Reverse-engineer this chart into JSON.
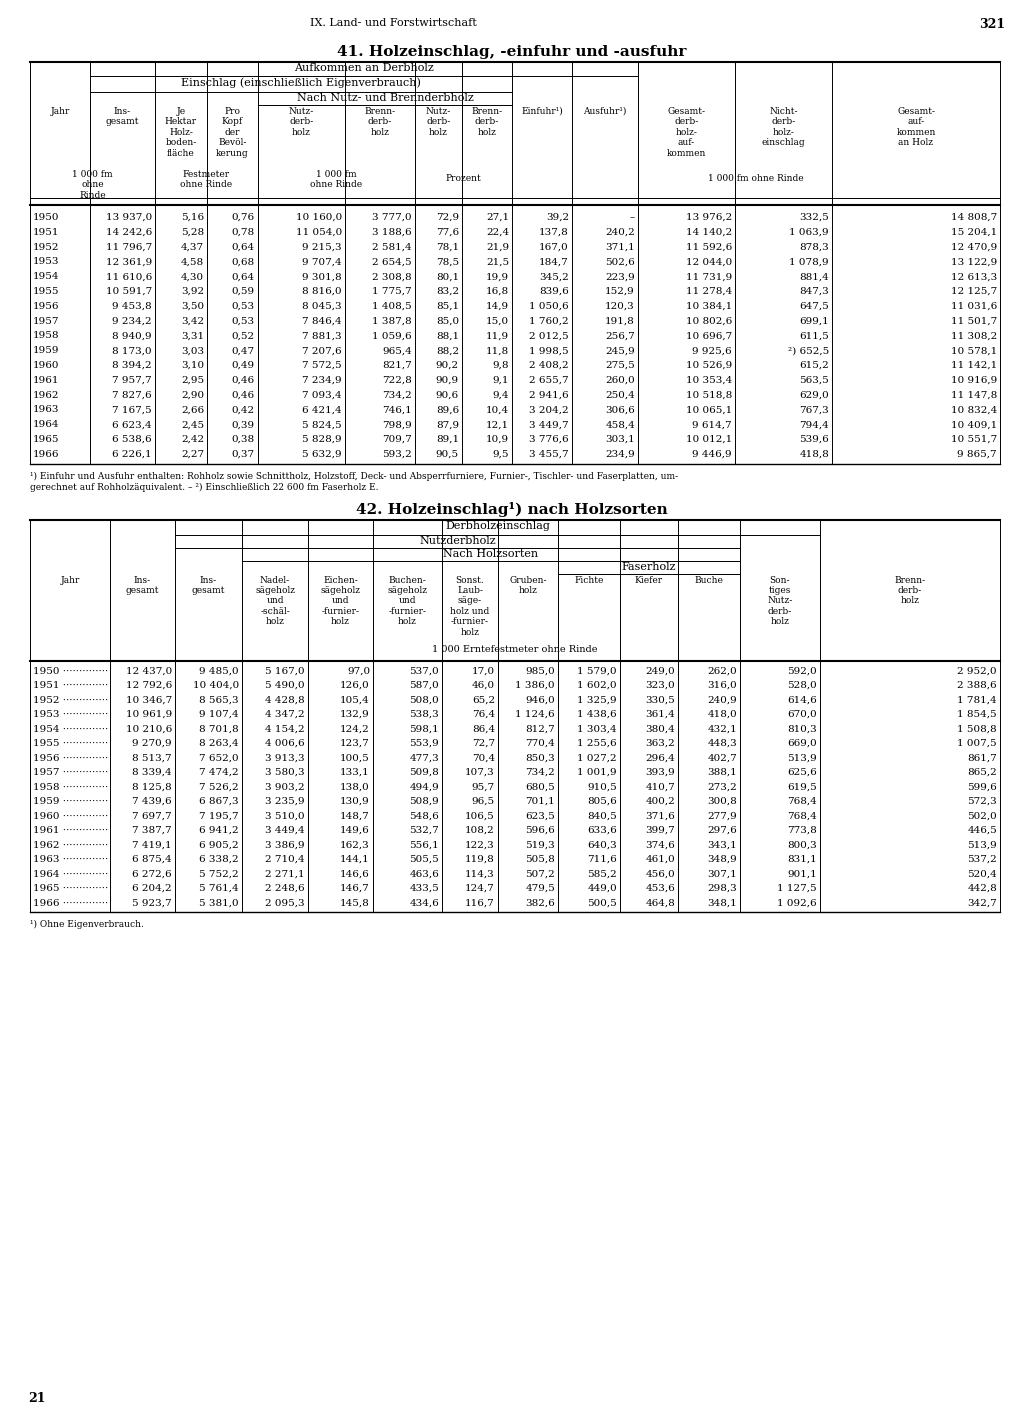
{
  "page_header": "IX. Land- und Forstwirtschaft",
  "page_number": "321",
  "table1_title": "41. Holzeinschlag, -einfuhr und -ausfuhr",
  "table2_title": "42. Holzeinschlag¹) nach Holzsorten",
  "footer_page": "21",
  "table1": {
    "data": [
      [
        "1950",
        "13 937,0",
        "5,16",
        "0,76",
        "10 160,0",
        "3 777,0",
        "72,9",
        "27,1",
        "39,2",
        "–",
        "13 976,2",
        "332,5",
        "14 808,7"
      ],
      [
        "1951",
        "14 242,6",
        "5,28",
        "0,78",
        "11 054,0",
        "3 188,6",
        "77,6",
        "22,4",
        "137,8",
        "240,2",
        "14 140,2",
        "1 063,9",
        "15 204,1"
      ],
      [
        "1952",
        "11 796,7",
        "4,37",
        "0,64",
        "9 215,3",
        "2 581,4",
        "78,1",
        "21,9",
        "167,0",
        "371,1",
        "11 592,6",
        "878,3",
        "12 470,9"
      ],
      [
        "1953",
        "12 361,9",
        "4,58",
        "0,68",
        "9 707,4",
        "2 654,5",
        "78,5",
        "21,5",
        "184,7",
        "502,6",
        "12 044,0",
        "1 078,9",
        "13 122,9"
      ],
      [
        "1954",
        "11 610,6",
        "4,30",
        "0,64",
        "9 301,8",
        "2 308,8",
        "80,1",
        "19,9",
        "345,2",
        "223,9",
        "11 731,9",
        "881,4",
        "12 613,3"
      ],
      [
        "1955",
        "10 591,7",
        "3,92",
        "0,59",
        "8 816,0",
        "1 775,7",
        "83,2",
        "16,8",
        "839,6",
        "152,9",
        "11 278,4",
        "847,3",
        "12 125,7"
      ],
      [
        "1956",
        "9 453,8",
        "3,50",
        "0,53",
        "8 045,3",
        "1 408,5",
        "85,1",
        "14,9",
        "1 050,6",
        "120,3",
        "10 384,1",
        "647,5",
        "11 031,6"
      ],
      [
        "1957",
        "9 234,2",
        "3,42",
        "0,53",
        "7 846,4",
        "1 387,8",
        "85,0",
        "15,0",
        "1 760,2",
        "191,8",
        "10 802,6",
        "699,1",
        "11 501,7"
      ],
      [
        "1958",
        "8 940,9",
        "3,31",
        "0,52",
        "7 881,3",
        "1 059,6",
        "88,1",
        "11,9",
        "2 012,5",
        "256,7",
        "10 696,7",
        "611,5",
        "11 308,2"
      ],
      [
        "1959",
        "8 173,0",
        "3,03",
        "0,47",
        "7 207,6",
        "965,4",
        "88,2",
        "11,8",
        "1 998,5",
        "245,9",
        "9 925,6",
        "²) 652,5",
        "10 578,1"
      ],
      [
        "1960",
        "8 394,2",
        "3,10",
        "0,49",
        "7 572,5",
        "821,7",
        "90,2",
        "9,8",
        "2 408,2",
        "275,5",
        "10 526,9",
        "615,2",
        "11 142,1"
      ],
      [
        "1961",
        "7 957,7",
        "2,95",
        "0,46",
        "7 234,9",
        "722,8",
        "90,9",
        "9,1",
        "2 655,7",
        "260,0",
        "10 353,4",
        "563,5",
        "10 916,9"
      ],
      [
        "1962",
        "7 827,6",
        "2,90",
        "0,46",
        "7 093,4",
        "734,2",
        "90,6",
        "9,4",
        "2 941,6",
        "250,4",
        "10 518,8",
        "629,0",
        "11 147,8"
      ],
      [
        "1963",
        "7 167,5",
        "2,66",
        "0,42",
        "6 421,4",
        "746,1",
        "89,6",
        "10,4",
        "3 204,2",
        "306,6",
        "10 065,1",
        "767,3",
        "10 832,4"
      ],
      [
        "1964",
        "6 623,4",
        "2,45",
        "0,39",
        "5 824,5",
        "798,9",
        "87,9",
        "12,1",
        "3 449,7",
        "458,4",
        "9 614,7",
        "794,4",
        "10 409,1"
      ],
      [
        "1965",
        "6 538,6",
        "2,42",
        "0,38",
        "5 828,9",
        "709,7",
        "89,1",
        "10,9",
        "3 776,6",
        "303,1",
        "10 012,1",
        "539,6",
        "10 551,7"
      ],
      [
        "1966",
        "6 226,1",
        "2,27",
        "0,37",
        "5 632,9",
        "593,2",
        "90,5",
        "9,5",
        "3 455,7",
        "234,9",
        "9 446,9",
        "418,8",
        "9 865,7"
      ]
    ],
    "footnote1": "¹) Einfuhr und Ausfuhr enthalten: Rohholz sowie Schnittholz, Holzstoff, Deck- und Absperrfurniere, Furnier-, Tischler- und Faserplatten, um-",
    "footnote2": "gerechnet auf Rohholzäquivalent. – ²) Einschließlich 22 600 fm Faserholz E."
  },
  "table2": {
    "data": [
      [
        "1950",
        "12 437,0",
        "9 485,0",
        "5 167,0",
        "97,0",
        "537,0",
        "17,0",
        "985,0",
        "1 579,0",
        "249,0",
        "262,0",
        "592,0",
        "2 952,0"
      ],
      [
        "1951",
        "12 792,6",
        "10 404,0",
        "5 490,0",
        "126,0",
        "587,0",
        "46,0",
        "1 386,0",
        "1 602,0",
        "323,0",
        "316,0",
        "528,0",
        "2 388,6"
      ],
      [
        "1952",
        "10 346,7",
        "8 565,3",
        "4 428,8",
        "105,4",
        "508,0",
        "65,2",
        "946,0",
        "1 325,9",
        "330,5",
        "240,9",
        "614,6",
        "1 781,4"
      ],
      [
        "1953",
        "10 961,9",
        "9 107,4",
        "4 347,2",
        "132,9",
        "538,3",
        "76,4",
        "1 124,6",
        "1 438,6",
        "361,4",
        "418,0",
        "670,0",
        "1 854,5"
      ],
      [
        "1954",
        "10 210,6",
        "8 701,8",
        "4 154,2",
        "124,2",
        "598,1",
        "86,4",
        "812,7",
        "1 303,4",
        "380,4",
        "432,1",
        "810,3",
        "1 508,8"
      ],
      [
        "1955",
        "9 270,9",
        "8 263,4",
        "4 006,6",
        "123,7",
        "553,9",
        "72,7",
        "770,4",
        "1 255,6",
        "363,2",
        "448,3",
        "669,0",
        "1 007,5"
      ],
      [
        "1956",
        "8 513,7",
        "7 652,0",
        "3 913,3",
        "100,5",
        "477,3",
        "70,4",
        "850,3",
        "1 027,2",
        "296,4",
        "402,7",
        "513,9",
        "861,7"
      ],
      [
        "1957",
        "8 339,4",
        "7 474,2",
        "3 580,3",
        "133,1",
        "509,8",
        "107,3",
        "734,2",
        "1 001,9",
        "393,9",
        "388,1",
        "625,6",
        "865,2"
      ],
      [
        "1958",
        "8 125,8",
        "7 526,2",
        "3 903,2",
        "138,0",
        "494,9",
        "95,7",
        "680,5",
        "910,5",
        "410,7",
        "273,2",
        "619,5",
        "599,6"
      ],
      [
        "1959",
        "7 439,6",
        "6 867,3",
        "3 235,9",
        "130,9",
        "508,9",
        "96,5",
        "701,1",
        "805,6",
        "400,2",
        "300,8",
        "768,4",
        "572,3"
      ],
      [
        "1960",
        "7 697,7",
        "7 195,7",
        "3 510,0",
        "148,7",
        "548,6",
        "106,5",
        "623,5",
        "840,5",
        "371,6",
        "277,9",
        "768,4",
        "502,0"
      ],
      [
        "1961",
        "7 387,7",
        "6 941,2",
        "3 449,4",
        "149,6",
        "532,7",
        "108,2",
        "596,6",
        "633,6",
        "399,7",
        "297,6",
        "773,8",
        "446,5"
      ],
      [
        "1962",
        "7 419,1",
        "6 905,2",
        "3 386,9",
        "162,3",
        "556,1",
        "122,3",
        "519,3",
        "640,3",
        "374,6",
        "343,1",
        "800,3",
        "513,9"
      ],
      [
        "1963",
        "6 875,4",
        "6 338,2",
        "2 710,4",
        "144,1",
        "505,5",
        "119,8",
        "505,8",
        "711,6",
        "461,0",
        "348,9",
        "831,1",
        "537,2"
      ],
      [
        "1964",
        "6 272,6",
        "5 752,2",
        "2 271,1",
        "146,6",
        "463,6",
        "114,3",
        "507,2",
        "585,2",
        "456,0",
        "307,1",
        "901,1",
        "520,4"
      ],
      [
        "1965",
        "6 204,2",
        "5 761,4",
        "2 248,6",
        "146,7",
        "433,5",
        "124,7",
        "479,5",
        "449,0",
        "453,6",
        "298,3",
        "1 127,5",
        "442,8"
      ],
      [
        "1966",
        "5 923,7",
        "5 381,0",
        "2 095,3",
        "145,8",
        "434,6",
        "116,7",
        "382,6",
        "500,5",
        "464,8",
        "348,1",
        "1 092,6",
        "342,7"
      ]
    ],
    "footnote": "¹) Ohne Eigenverbrauch."
  }
}
